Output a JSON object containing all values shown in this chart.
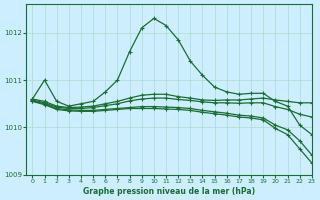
{
  "title": "Graphe pression niveau de la mer (hPa)",
  "bg_color": "#cceeff",
  "grid_color": "#aaddcc",
  "line_color": "#1a6e2e",
  "xlim": [
    -0.5,
    23
  ],
  "ylim": [
    1009.0,
    1012.6
  ],
  "yticks": [
    1009,
    1010,
    1011,
    1012
  ],
  "xticks": [
    0,
    1,
    2,
    3,
    4,
    5,
    6,
    7,
    8,
    9,
    10,
    11,
    12,
    13,
    14,
    15,
    16,
    17,
    18,
    19,
    20,
    21,
    22,
    23
  ],
  "series": [
    {
      "x": [
        0,
        1,
        2,
        3,
        4,
        5,
        6,
        7,
        8,
        9,
        10,
        11,
        12,
        13,
        14,
        15,
        16,
        17,
        18,
        19,
        20,
        21,
        22,
        23
      ],
      "y": [
        1010.6,
        1011.0,
        1010.55,
        1010.45,
        1010.5,
        1010.55,
        1010.75,
        1011.0,
        1011.6,
        1012.1,
        1012.3,
        1012.15,
        1011.85,
        1011.4,
        1011.1,
        1010.85,
        1010.75,
        1010.7,
        1010.72,
        1010.72,
        1010.55,
        1010.45,
        1010.05,
        1009.85
      ]
    },
    {
      "x": [
        0,
        1,
        2,
        3,
        4,
        5,
        6,
        7,
        8,
        9,
        10,
        11,
        12,
        13,
        14,
        15,
        16,
        17,
        18,
        19,
        20,
        21,
        22,
        23
      ],
      "y": [
        1010.6,
        1010.55,
        1010.45,
        1010.42,
        1010.43,
        1010.45,
        1010.5,
        1010.55,
        1010.62,
        1010.68,
        1010.7,
        1010.7,
        1010.65,
        1010.62,
        1010.58,
        1010.57,
        1010.58,
        1010.58,
        1010.6,
        1010.62,
        1010.58,
        1010.55,
        1010.52,
        1010.52
      ]
    },
    {
      "x": [
        0,
        1,
        2,
        3,
        4,
        5,
        6,
        7,
        8,
        9,
        10,
        11,
        12,
        13,
        14,
        15,
        16,
        17,
        18,
        19,
        20,
        21,
        22,
        23
      ],
      "y": [
        1010.58,
        1010.52,
        1010.43,
        1010.4,
        1010.4,
        1010.42,
        1010.46,
        1010.5,
        1010.56,
        1010.6,
        1010.62,
        1010.62,
        1010.59,
        1010.57,
        1010.54,
        1010.52,
        1010.52,
        1010.51,
        1010.52,
        1010.52,
        1010.44,
        1010.38,
        1010.28,
        1010.22
      ]
    },
    {
      "x": [
        0,
        1,
        2,
        3,
        4,
        5,
        6,
        7,
        8,
        9,
        10,
        11,
        12,
        13,
        14,
        15,
        16,
        17,
        18,
        19,
        20,
        21,
        22,
        23
      ],
      "y": [
        1010.56,
        1010.5,
        1010.4,
        1010.37,
        1010.36,
        1010.36,
        1010.38,
        1010.4,
        1010.42,
        1010.44,
        1010.44,
        1010.43,
        1010.42,
        1010.4,
        1010.36,
        1010.33,
        1010.3,
        1010.26,
        1010.24,
        1010.2,
        1010.05,
        1009.95,
        1009.72,
        1009.42
      ]
    },
    {
      "x": [
        0,
        1,
        2,
        3,
        4,
        5,
        6,
        7,
        8,
        9,
        10,
        11,
        12,
        13,
        14,
        15,
        16,
        17,
        18,
        19,
        20,
        21,
        22,
        23
      ],
      "y": [
        1010.55,
        1010.48,
        1010.38,
        1010.35,
        1010.34,
        1010.34,
        1010.36,
        1010.38,
        1010.4,
        1010.4,
        1010.4,
        1010.39,
        1010.38,
        1010.36,
        1010.32,
        1010.29,
        1010.26,
        1010.22,
        1010.2,
        1010.16,
        1009.98,
        1009.85,
        1009.55,
        1009.25
      ]
    }
  ]
}
